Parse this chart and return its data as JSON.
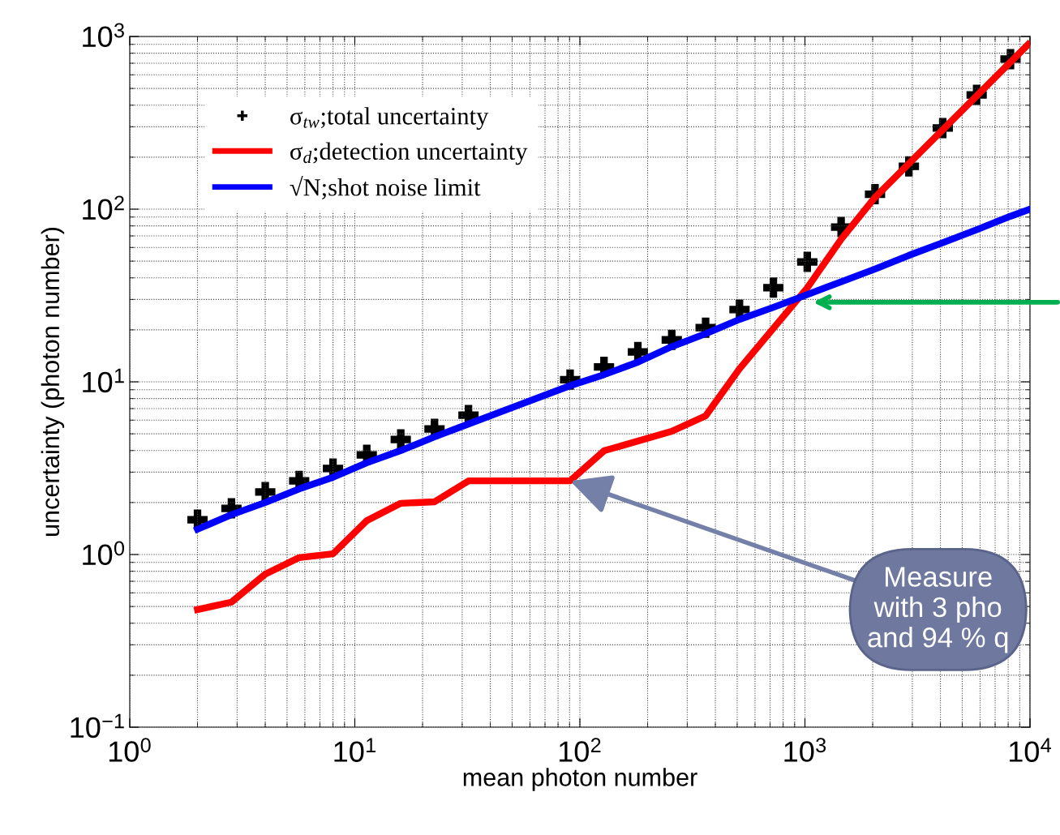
{
  "chart_data": {
    "type": "line",
    "xlabel": "mean photon number",
    "ylabel": "uncertainty (photon number)",
    "log": "xy",
    "xlim": [
      1,
      10000
    ],
    "ylim": [
      0.1,
      1000
    ],
    "xticks": [
      {
        "value": 1,
        "label": "10$^{0}$"
      },
      {
        "value": 10,
        "label": "10$^{1}$"
      },
      {
        "value": 100,
        "label": "10$^{2}$"
      },
      {
        "value": 1000,
        "label": "10$^{3}$"
      },
      {
        "value": 10000,
        "label": "10$^{4}$"
      }
    ],
    "yticks": [
      {
        "value": 0.1,
        "label": "10$^{−1}$"
      },
      {
        "value": 1,
        "label": "10$^{0}$"
      },
      {
        "value": 10,
        "label": "10$^{1}$"
      },
      {
        "value": 100,
        "label": "10$^{2}$"
      },
      {
        "value": 1000,
        "label": "10$^{3}$"
      }
    ],
    "grid": true,
    "legend": "top left",
    "series": [
      {
        "name": "σ$_{tw}$;total uncertainty",
        "type": "scatter",
        "marker": "cross",
        "color": "#000000",
        "x": [
          2,
          2.83,
          4,
          5.66,
          8,
          11.3,
          16,
          22.6,
          32,
          90.5,
          128,
          181,
          256,
          362,
          512,
          724,
          1024,
          1448,
          2048,
          2896,
          4096,
          5793,
          8192
        ],
        "values": [
          1.59,
          1.85,
          2.3,
          2.67,
          3.15,
          3.78,
          4.64,
          5.34,
          6.42,
          10.3,
          12.2,
          14.9,
          17.5,
          20.6,
          26.2,
          35.1,
          49.5,
          78.8,
          122,
          177,
          295,
          459,
          739
        ]
      },
      {
        "name": "σ$_{d}$;detection uncertainty",
        "color": "#ff0000",
        "x": [
          2,
          2.83,
          4,
          5.66,
          8,
          11.3,
          16,
          22.6,
          32,
          90.5,
          128,
          256,
          362,
          512,
          1024,
          1448,
          2048,
          9800
        ],
        "values": [
          0.48,
          0.53,
          0.77,
          0.96,
          1.01,
          1.57,
          1.98,
          2.02,
          2.67,
          2.67,
          3.99,
          5.17,
          6.35,
          11.9,
          35,
          67,
          117,
          898
        ]
      },
      {
        "name": "√N;shot noise limit",
        "color": "#0000ff",
        "x": [
          2,
          2.83,
          4,
          5.66,
          8,
          11.3,
          16,
          22.6,
          32,
          90.5,
          128,
          181,
          256,
          362,
          512,
          724,
          1024,
          1448,
          2048,
          2896,
          4096,
          5793,
          8192,
          10000
        ],
        "values": [
          1.4,
          1.7,
          2.0,
          2.4,
          2.8,
          3.4,
          4.0,
          4.8,
          5.7,
          9.5,
          11,
          13,
          16,
          19,
          23,
          27,
          32,
          38,
          45,
          54,
          64,
          76,
          91,
          100
        ]
      }
    ],
    "annotations": [
      {
        "text": "Measure\nwith 3 pho\nand 94 % q",
        "x": 90.5,
        "y": 2.67
      }
    ]
  }
}
